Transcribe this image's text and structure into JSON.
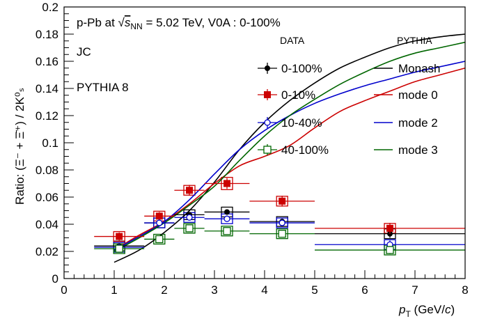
{
  "chart_data": {
    "type": "scatter",
    "xlim": [
      0,
      8
    ],
    "ylim": [
      0,
      0.2
    ],
    "x_ticks": [
      0,
      1,
      2,
      3,
      4,
      5,
      6,
      7,
      8
    ],
    "y_ticks": [
      0,
      0.02,
      0.04,
      0.06,
      0.08,
      0.1,
      0.12,
      0.14,
      0.16,
      0.18,
      0.2
    ],
    "x_tick_labels": [
      "0",
      "1",
      "2",
      "3",
      "4",
      "5",
      "6",
      "7",
      "8"
    ],
    "y_tick_labels": [
      "0",
      "0.02",
      "0.04",
      "0.06",
      "0.08",
      "0.1",
      "0.12",
      "0.14",
      "0.16",
      "0.18",
      "0.2"
    ],
    "xlabel": {
      "main": "p",
      "sub": "T",
      "rest": " (GeV/",
      "italic": "c",
      "close": ")"
    },
    "ylabel": "Ratio: (Ξ⁻ + Ξ̄⁺) / 2K⁰ₛ",
    "annotations": {
      "system_line": {
        "pre": "p-Pb at ",
        "sqrt": "√",
        "s": "s",
        "sub": "NN",
        "post": " = 5.02 TeV,  V0A : 0-100%"
      },
      "tag1": "JC",
      "tag2": "PYTHIA 8",
      "legend_data_header": "DATA",
      "legend_model_header": "PYTHIA"
    },
    "data_series": [
      {
        "name": "0-100%",
        "color": "#000000",
        "marker": "filled-circle",
        "points": [
          {
            "x": 1.1,
            "xlo": 0.6,
            "xhi": 1.6,
            "y": 0.024,
            "stat": 0.002,
            "sys": 0.002
          },
          {
            "x": 1.9,
            "xlo": 1.6,
            "xhi": 2.2,
            "y": 0.041,
            "stat": 0.002,
            "sys": 0.003
          },
          {
            "x": 2.5,
            "xlo": 2.2,
            "xhi": 2.8,
            "y": 0.047,
            "stat": 0.002,
            "sys": 0.003
          },
          {
            "x": 3.25,
            "xlo": 2.8,
            "xhi": 3.7,
            "y": 0.049,
            "stat": 0.002,
            "sys": 0.003
          },
          {
            "x": 4.35,
            "xlo": 3.7,
            "xhi": 5.0,
            "y": 0.042,
            "stat": 0.002,
            "sys": 0.003
          },
          {
            "x": 6.5,
            "xlo": 5.0,
            "xhi": 8.0,
            "y": 0.033,
            "stat": 0.003,
            "sys": 0.003
          }
        ]
      },
      {
        "name": "0-10%",
        "color": "#cc0000",
        "marker": "filled-square",
        "points": [
          {
            "x": 1.1,
            "xlo": 0.6,
            "xhi": 1.6,
            "y": 0.031,
            "stat": 0.003,
            "sys": 0.003
          },
          {
            "x": 1.9,
            "xlo": 1.6,
            "xhi": 2.2,
            "y": 0.046,
            "stat": 0.003,
            "sys": 0.003
          },
          {
            "x": 2.5,
            "xlo": 2.2,
            "xhi": 2.8,
            "y": 0.065,
            "stat": 0.004,
            "sys": 0.003
          },
          {
            "x": 3.25,
            "xlo": 2.8,
            "xhi": 3.7,
            "y": 0.07,
            "stat": 0.004,
            "sys": 0.004
          },
          {
            "x": 4.35,
            "xlo": 3.7,
            "xhi": 5.0,
            "y": 0.057,
            "stat": 0.004,
            "sys": 0.003
          },
          {
            "x": 6.5,
            "xlo": 5.0,
            "xhi": 8.0,
            "y": 0.037,
            "stat": 0.004,
            "sys": 0.003
          }
        ]
      },
      {
        "name": "10-40%",
        "color": "#0000cc",
        "marker": "open-circle",
        "points": [
          {
            "x": 1.1,
            "xlo": 0.6,
            "xhi": 1.6,
            "y": 0.023,
            "stat": 0.002,
            "sys": 0.002
          },
          {
            "x": 1.9,
            "xlo": 1.6,
            "xhi": 2.2,
            "y": 0.041,
            "stat": 0.002,
            "sys": 0.003
          },
          {
            "x": 2.5,
            "xlo": 2.2,
            "xhi": 2.8,
            "y": 0.045,
            "stat": 0.002,
            "sys": 0.003
          },
          {
            "x": 3.25,
            "xlo": 2.8,
            "xhi": 3.7,
            "y": 0.044,
            "stat": 0.002,
            "sys": 0.003
          },
          {
            "x": 4.35,
            "xlo": 3.7,
            "xhi": 5.0,
            "y": 0.041,
            "stat": 0.002,
            "sys": 0.003
          },
          {
            "x": 6.5,
            "xlo": 5.0,
            "xhi": 8.0,
            "y": 0.025,
            "stat": 0.003,
            "sys": 0.003
          }
        ]
      },
      {
        "name": "40-100%",
        "color": "#006600",
        "marker": "open-square",
        "points": [
          {
            "x": 1.1,
            "xlo": 0.6,
            "xhi": 1.6,
            "y": 0.022,
            "stat": 0.002,
            "sys": 0.002
          },
          {
            "x": 1.9,
            "xlo": 1.6,
            "xhi": 2.2,
            "y": 0.029,
            "stat": 0.002,
            "sys": 0.002
          },
          {
            "x": 2.5,
            "xlo": 2.2,
            "xhi": 2.8,
            "y": 0.037,
            "stat": 0.002,
            "sys": 0.002
          },
          {
            "x": 3.25,
            "xlo": 2.8,
            "xhi": 3.7,
            "y": 0.035,
            "stat": 0.002,
            "sys": 0.002
          },
          {
            "x": 4.35,
            "xlo": 3.7,
            "xhi": 5.0,
            "y": 0.033,
            "stat": 0.002,
            "sys": 0.002
          },
          {
            "x": 6.5,
            "xlo": 5.0,
            "xhi": 8.0,
            "y": 0.021,
            "stat": 0.003,
            "sys": 0.002
          }
        ]
      }
    ],
    "model_series": [
      {
        "name": "Monash",
        "color": "#000000",
        "x": [
          1.0,
          1.5,
          2.0,
          2.5,
          3.0,
          3.5,
          4.0,
          4.5,
          5.0,
          5.5,
          6.0,
          6.5,
          7.0,
          7.5,
          8.0
        ],
        "y": [
          0.012,
          0.021,
          0.034,
          0.05,
          0.071,
          0.095,
          0.115,
          0.131,
          0.144,
          0.155,
          0.163,
          0.17,
          0.175,
          0.178,
          0.18
        ]
      },
      {
        "name": "mode 0",
        "color": "#cc0000",
        "x": [
          1.0,
          1.5,
          2.0,
          2.5,
          3.0,
          3.5,
          4.0,
          4.5,
          5.0,
          5.5,
          6.0,
          6.5,
          7.0,
          7.5,
          8.0
        ],
        "y": [
          0.021,
          0.032,
          0.042,
          0.055,
          0.07,
          0.083,
          0.09,
          0.098,
          0.111,
          0.123,
          0.131,
          0.138,
          0.145,
          0.15,
          0.155
        ]
      },
      {
        "name": "mode 2",
        "color": "#0000cc",
        "x": [
          1.0,
          1.5,
          2.0,
          2.5,
          3.0,
          3.5,
          4.0,
          4.5,
          5.0,
          5.5,
          6.0,
          6.5,
          7.0,
          7.5,
          8.0
        ],
        "y": [
          0.021,
          0.031,
          0.042,
          0.058,
          0.077,
          0.095,
          0.109,
          0.12,
          0.129,
          0.136,
          0.142,
          0.147,
          0.152,
          0.156,
          0.16
        ]
      },
      {
        "name": "mode 3",
        "color": "#006600",
        "x": [
          1.0,
          1.5,
          2.0,
          2.5,
          3.0,
          3.5,
          4.0,
          4.5,
          5.0,
          5.5,
          6.0,
          6.5,
          7.0,
          7.5,
          8.0
        ],
        "y": [
          0.02,
          0.03,
          0.041,
          0.054,
          0.068,
          0.087,
          0.105,
          0.12,
          0.132,
          0.143,
          0.152,
          0.16,
          0.166,
          0.17,
          0.174
        ]
      }
    ]
  }
}
